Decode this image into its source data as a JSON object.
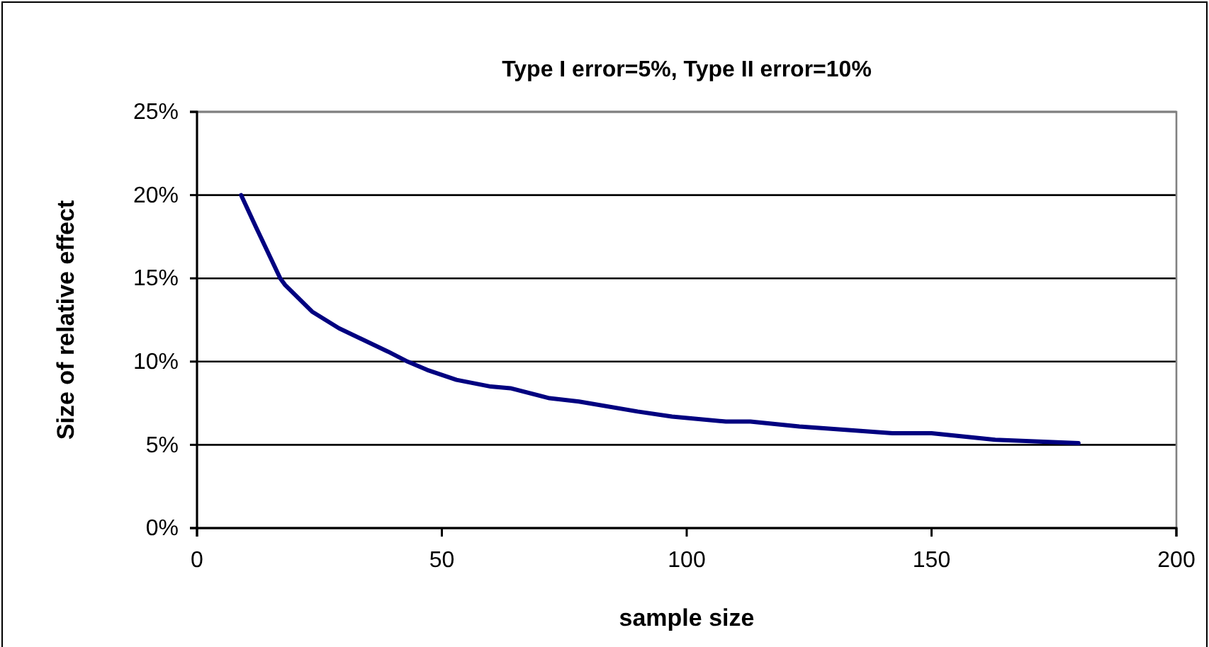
{
  "chart_data": {
    "type": "line",
    "title": "Type I error=5%, Type II error=10%",
    "xlabel": "sample size",
    "ylabel": "Size of relative effect",
    "x": [
      9,
      12,
      17,
      18,
      23.5,
      29,
      39,
      43,
      47,
      53,
      60,
      64,
      72,
      78,
      90,
      97,
      108,
      113,
      123,
      142,
      150,
      163,
      180
    ],
    "series": [
      {
        "color": "#000080",
        "values": [
          20,
          18.1,
          15,
          14.6,
          13,
          12,
          10.6,
          10,
          9.5,
          8.9,
          8.5,
          8.4,
          7.8,
          7.6,
          7,
          6.7,
          6.4,
          6.4,
          6.1,
          5.7,
          5.7,
          5.3,
          5.1
        ]
      }
    ],
    "xlim": [
      0,
      200
    ],
    "xticks": [
      0,
      50,
      100,
      150,
      200
    ],
    "ylim": [
      0,
      25
    ],
    "yticks": [
      {
        "value": 0,
        "label": "0%"
      },
      {
        "value": 5,
        "label": "5%"
      },
      {
        "value": 10,
        "label": "10%"
      },
      {
        "value": 15,
        "label": "15%"
      },
      {
        "value": 20,
        "label": "20%"
      },
      {
        "value": 25,
        "label": "25%"
      }
    ],
    "grid": "y",
    "marker": "none",
    "line_style": "solid"
  }
}
